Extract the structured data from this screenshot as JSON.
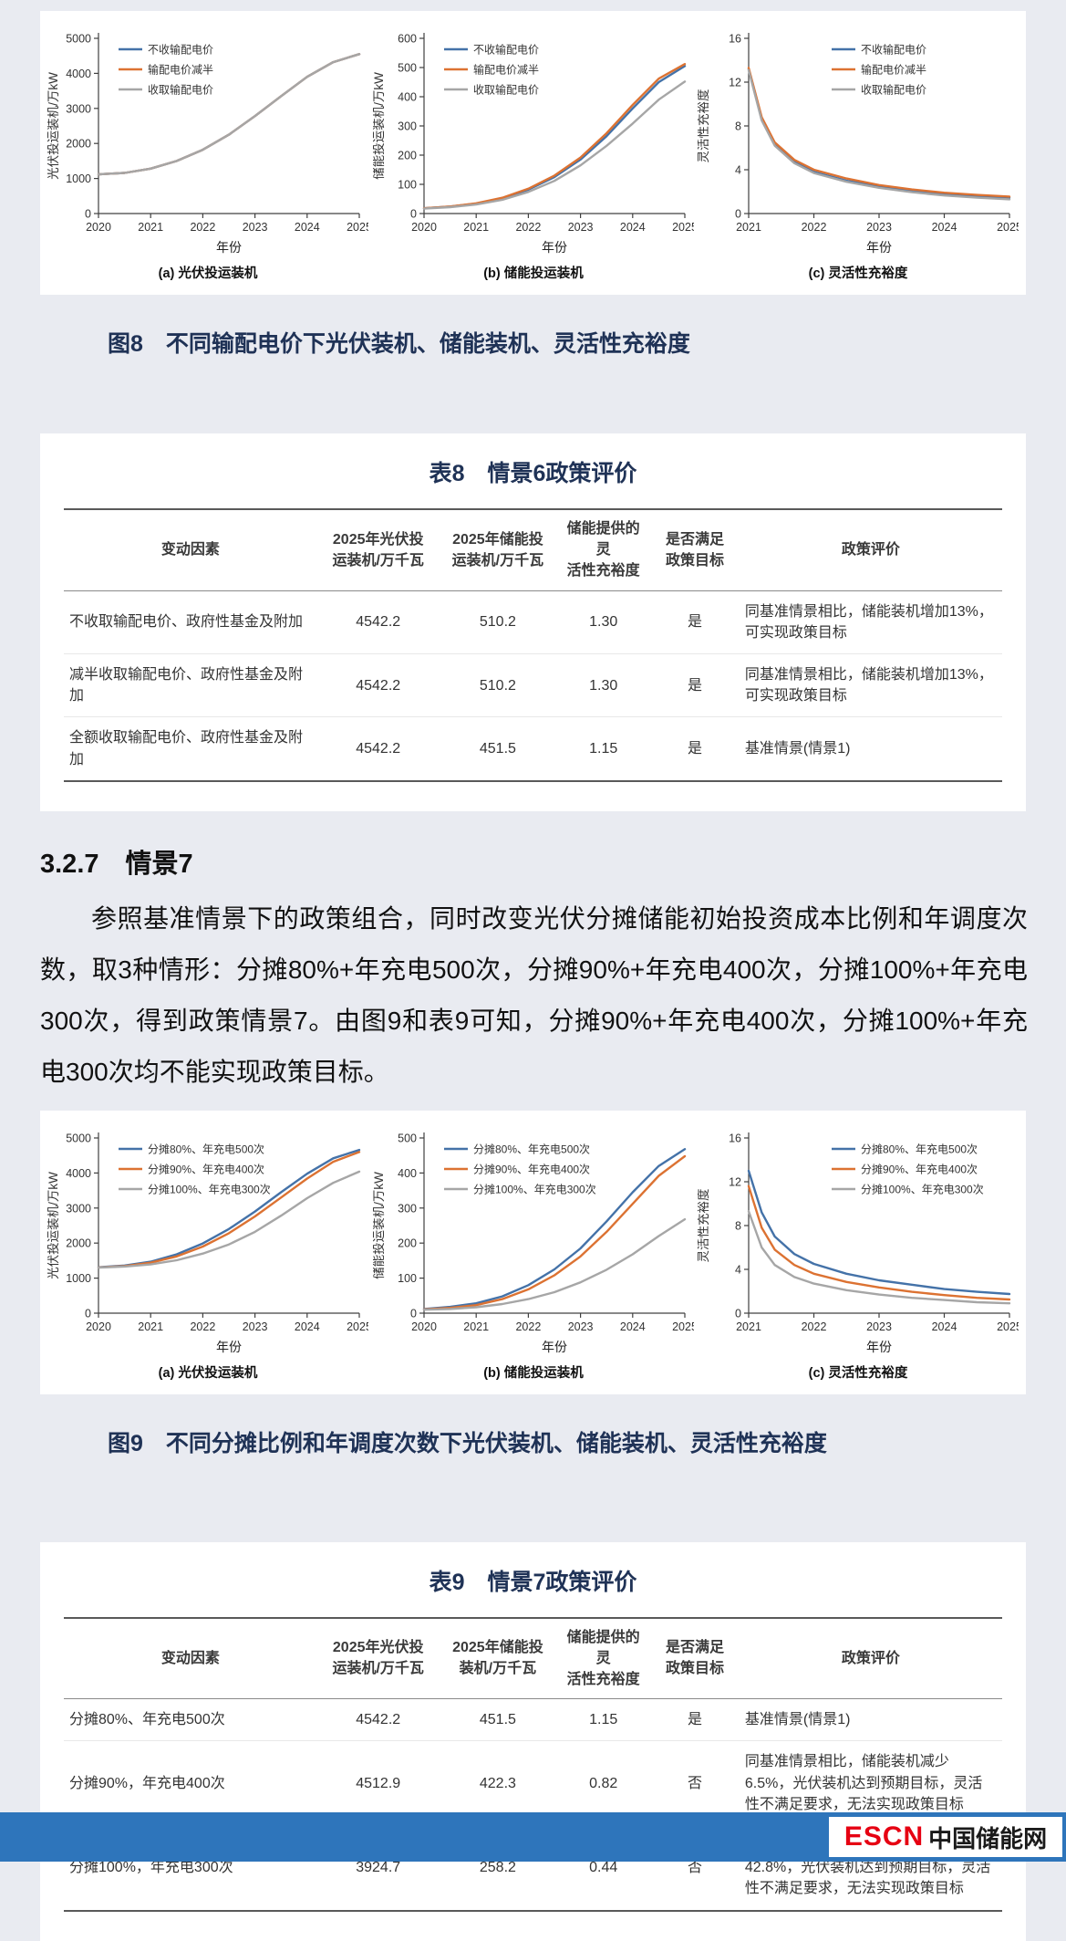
{
  "figure8": {
    "caption": "图8　不同输配电价下光伏装机、储能装机、灵活性充裕度"
  },
  "figure9": {
    "caption": "图9　不同分摊比例和年调度次数下光伏装机、储能装机、灵活性充裕度"
  },
  "section": {
    "heading": "3.2.7　情景7",
    "paragraph": "参照基准情景下的政策组合，同时改变光伏分摊储能初始投资成本比例和年调度次数，取3种情形：分摊80%+年充电500次，分摊90%+年充电400次，分摊100%+年充电300次，得到政策情景7。由图9和表9可知，分摊90%+年充电400次，分摊100%+年充电300次均不能实现政策目标。"
  },
  "table8": {
    "title": "表8　情景6政策评价",
    "col_widths": [
      "27%",
      "13%",
      "12.5%",
      "10%",
      "9.5%",
      "28%"
    ],
    "headers": [
      "变动因素",
      "2025年光伏投\n运装机/万千瓦",
      "2025年储能投\n运装机/万千瓦",
      "储能提供的灵\n活性充裕度",
      "是否满足\n政策目标",
      "政策评价"
    ],
    "rows": [
      [
        "不收取输配电价、政府性基金及附加",
        "4542.2",
        "510.2",
        "1.30",
        "是",
        "同基准情景相比，储能装机增加13%，\n可实现政策目标"
      ],
      [
        "减半收取输配电价、政府性基金及附加",
        "4542.2",
        "510.2",
        "1.30",
        "是",
        "同基准情景相比，储能装机增加13%，\n可实现政策目标"
      ],
      [
        "全额收取输配电价、政府性基金及附加",
        "4542.2",
        "451.5",
        "1.15",
        "是",
        "基准情景(情景1)"
      ]
    ]
  },
  "table9": {
    "title": "表9　情景7政策评价",
    "col_widths": [
      "27%",
      "13%",
      "12.5%",
      "10%",
      "9.5%",
      "28%"
    ],
    "headers": [
      "变动因素",
      "2025年光伏投\n运装机/万千瓦",
      "2025年储能投\n装机/万千瓦",
      "储能提供的灵\n活性充裕度",
      "是否满足\n政策目标",
      "政策评价"
    ],
    "rows": [
      [
        "分摊80%、年充电500次",
        "4542.2",
        "451.5",
        "1.15",
        "是",
        "基准情景(情景1)"
      ],
      [
        "分摊90%，年充电400次",
        "4512.9",
        "422.3",
        "0.82",
        "否",
        "同基准情景相比，储能装机减少6.5%，光伏装机达到预期目标，灵活性不满足要求，无法实现政策目标"
      ],
      [
        "分摊100%，年充电300次",
        "3924.7",
        "258.2",
        "0.44",
        "否",
        "同基准情景相比，储能装机减少42.8%，光伏装机达到预期目标，灵活性不满足要求，无法实现政策目标"
      ]
    ]
  },
  "footer": {
    "logo_escn": "ESCN",
    "logo_site": "中国储能网"
  },
  "colors": {
    "series_blue": "#4472a8",
    "series_orange": "#dc7232",
    "series_gray": "#a6a6a6",
    "footer_blue": "#2e75bb",
    "escn_red": "#e60012"
  },
  "chart_data": [
    {
      "type": "line",
      "title": "(a) 光伏投运装机",
      "ylabel": "光伏投运装机/万kW",
      "xlabel": "年份",
      "xlim": [
        2020,
        2025
      ],
      "ylim": [
        0,
        5000
      ],
      "xticks": [
        2020,
        2021,
        2022,
        2023,
        2024,
        2025
      ],
      "yticks": [
        0,
        1000,
        2000,
        3000,
        4000,
        5000
      ],
      "legend_pos": "left",
      "series": [
        {
          "name": "不收输配电价",
          "color": "#4472a8",
          "x": [
            2020,
            2020.5,
            2021,
            2021.5,
            2022,
            2022.5,
            2023,
            2023.5,
            2024,
            2024.5,
            2025
          ],
          "y": [
            1120,
            1160,
            1280,
            1500,
            1820,
            2250,
            2780,
            3350,
            3900,
            4320,
            4550
          ]
        },
        {
          "name": "输配电价减半",
          "color": "#dc7232",
          "x": [
            2020,
            2020.5,
            2021,
            2021.5,
            2022,
            2022.5,
            2023,
            2023.5,
            2024,
            2024.5,
            2025
          ],
          "y": [
            1120,
            1160,
            1280,
            1500,
            1820,
            2250,
            2780,
            3350,
            3900,
            4320,
            4550
          ]
        },
        {
          "name": "收取输配电价",
          "color": "#a6a6a6",
          "x": [
            2020,
            2020.5,
            2021,
            2021.5,
            2022,
            2022.5,
            2023,
            2023.5,
            2024,
            2024.5,
            2025
          ],
          "y": [
            1120,
            1160,
            1280,
            1500,
            1820,
            2250,
            2780,
            3350,
            3900,
            4320,
            4550
          ]
        }
      ]
    },
    {
      "type": "line",
      "title": "(b) 储能投运装机",
      "ylabel": "储能投运装机/万kW",
      "xlabel": "年份",
      "xlim": [
        2020,
        2025
      ],
      "ylim": [
        0,
        600
      ],
      "xticks": [
        2020,
        2021,
        2022,
        2023,
        2024,
        2025
      ],
      "yticks": [
        0,
        100,
        200,
        300,
        400,
        500,
        600
      ],
      "legend_pos": "left",
      "series": [
        {
          "name": "不收输配电价",
          "color": "#4472a8",
          "x": [
            2020,
            2020.5,
            2021,
            2021.5,
            2022,
            2022.5,
            2023,
            2023.5,
            2024,
            2024.5,
            2025
          ],
          "y": [
            18,
            24,
            34,
            52,
            82,
            125,
            185,
            265,
            360,
            450,
            505
          ]
        },
        {
          "name": "输配电价减半",
          "color": "#dc7232",
          "x": [
            2020,
            2020.5,
            2021,
            2021.5,
            2022,
            2022.5,
            2023,
            2023.5,
            2024,
            2024.5,
            2025
          ],
          "y": [
            18,
            24,
            35,
            54,
            85,
            130,
            192,
            275,
            372,
            462,
            512
          ]
        },
        {
          "name": "收取输配电价",
          "color": "#a6a6a6",
          "x": [
            2020,
            2020.5,
            2021,
            2021.5,
            2022,
            2022.5,
            2023,
            2023.5,
            2024,
            2024.5,
            2025
          ],
          "y": [
            17,
            22,
            31,
            47,
            74,
            112,
            165,
            232,
            308,
            390,
            452
          ]
        }
      ]
    },
    {
      "type": "line",
      "title": "(c) 灵活性充裕度",
      "ylabel": "灵活性充裕度",
      "xlabel": "年份",
      "xlim": [
        2021,
        2025
      ],
      "ylim": [
        0,
        16
      ],
      "xticks": [
        2021,
        2022,
        2023,
        2024,
        2025
      ],
      "yticks": [
        0,
        4,
        8,
        12,
        16
      ],
      "legend_pos": "right",
      "series": [
        {
          "name": "不收输配电价",
          "color": "#4472a8",
          "x": [
            2021,
            2021.2,
            2021.4,
            2021.7,
            2022,
            2022.5,
            2023,
            2023.5,
            2024,
            2024.5,
            2025
          ],
          "y": [
            13.2,
            8.6,
            6.3,
            4.7,
            3.8,
            3.0,
            2.5,
            2.1,
            1.8,
            1.6,
            1.45
          ]
        },
        {
          "name": "输配电价减半",
          "color": "#dc7232",
          "x": [
            2021,
            2021.2,
            2021.4,
            2021.7,
            2022,
            2022.5,
            2023,
            2023.5,
            2024,
            2024.5,
            2025
          ],
          "y": [
            13.3,
            8.8,
            6.5,
            4.9,
            4.0,
            3.2,
            2.6,
            2.2,
            1.9,
            1.7,
            1.55
          ]
        },
        {
          "name": "收取输配电价",
          "color": "#a6a6a6",
          "x": [
            2021,
            2021.2,
            2021.4,
            2021.7,
            2022,
            2022.5,
            2023,
            2023.5,
            2024,
            2024.5,
            2025
          ],
          "y": [
            13.1,
            8.5,
            6.2,
            4.6,
            3.7,
            2.9,
            2.35,
            1.95,
            1.65,
            1.45,
            1.3
          ]
        }
      ]
    },
    {
      "type": "line",
      "title": "(a) 光伏投运装机",
      "ylabel": "光伏投运装机/万kW",
      "xlabel": "年份",
      "xlim": [
        2020,
        2025
      ],
      "ylim": [
        0,
        5000
      ],
      "xticks": [
        2020,
        2021,
        2022,
        2023,
        2024,
        2025
      ],
      "yticks": [
        0,
        1000,
        2000,
        3000,
        4000,
        5000
      ],
      "legend_pos": "left",
      "series": [
        {
          "name": "分摊80%、年充电500次",
          "color": "#4472a8",
          "x": [
            2020,
            2020.5,
            2021,
            2021.5,
            2022,
            2022.5,
            2023,
            2023.5,
            2024,
            2024.5,
            2025
          ],
          "y": [
            1310,
            1360,
            1470,
            1680,
            1990,
            2400,
            2900,
            3450,
            3980,
            4420,
            4660
          ]
        },
        {
          "name": "分摊90%、年充电400次",
          "color": "#dc7232",
          "x": [
            2020,
            2020.5,
            2021,
            2021.5,
            2022,
            2022.5,
            2023,
            2023.5,
            2024,
            2024.5,
            2025
          ],
          "y": [
            1305,
            1345,
            1440,
            1620,
            1900,
            2280,
            2760,
            3300,
            3840,
            4320,
            4600
          ]
        },
        {
          "name": "分摊100%、年充电300次",
          "color": "#a6a6a6",
          "x": [
            2020,
            2020.5,
            2021,
            2021.5,
            2022,
            2022.5,
            2023,
            2023.5,
            2024,
            2024.5,
            2025
          ],
          "y": [
            1300,
            1330,
            1390,
            1510,
            1700,
            1960,
            2320,
            2780,
            3280,
            3720,
            4040
          ]
        }
      ]
    },
    {
      "type": "line",
      "title": "(b) 储能投运装机",
      "ylabel": "储能投运装机/万kW",
      "xlabel": "年份",
      "xlim": [
        2020,
        2025
      ],
      "ylim": [
        0,
        500
      ],
      "xticks": [
        2020,
        2021,
        2022,
        2023,
        2024,
        2025
      ],
      "yticks": [
        0,
        100,
        200,
        300,
        400,
        500
      ],
      "legend_pos": "left",
      "series": [
        {
          "name": "分摊80%、年充电500次",
          "color": "#4472a8",
          "x": [
            2020,
            2020.5,
            2021,
            2021.5,
            2022,
            2022.5,
            2023,
            2023.5,
            2024,
            2024.5,
            2025
          ],
          "y": [
            12,
            18,
            28,
            48,
            80,
            125,
            185,
            262,
            345,
            420,
            468
          ]
        },
        {
          "name": "分摊90%、年充电400次",
          "color": "#dc7232",
          "x": [
            2020,
            2020.5,
            2021,
            2021.5,
            2022,
            2022.5,
            2023,
            2023.5,
            2024,
            2024.5,
            2025
          ],
          "y": [
            11,
            15,
            23,
            40,
            68,
            108,
            162,
            232,
            312,
            392,
            448
          ]
        },
        {
          "name": "分摊100%、年充电300次",
          "color": "#a6a6a6",
          "x": [
            2020,
            2020.5,
            2021,
            2021.5,
            2022,
            2022.5,
            2023,
            2023.5,
            2024,
            2024.5,
            2025
          ],
          "y": [
            10,
            12,
            17,
            26,
            40,
            60,
            88,
            124,
            168,
            220,
            268
          ]
        }
      ]
    },
    {
      "type": "line",
      "title": "(c) 灵活性充裕度",
      "ylabel": "灵活性充裕度",
      "xlabel": "年份",
      "xlim": [
        2021,
        2025
      ],
      "ylim": [
        0,
        16
      ],
      "xticks": [
        2021,
        2022,
        2023,
        2024,
        2025
      ],
      "yticks": [
        0,
        4,
        8,
        12,
        16
      ],
      "legend_pos": "right",
      "series": [
        {
          "name": "分摊80%、年充电500次",
          "color": "#4472a8",
          "x": [
            2021,
            2021.2,
            2021.4,
            2021.7,
            2022,
            2022.5,
            2023,
            2023.5,
            2024,
            2024.5,
            2025
          ],
          "y": [
            13.0,
            9.2,
            7.0,
            5.4,
            4.5,
            3.6,
            3.0,
            2.6,
            2.2,
            1.95,
            1.75
          ]
        },
        {
          "name": "分摊90%、年充电400次",
          "color": "#dc7232",
          "x": [
            2021,
            2021.2,
            2021.4,
            2021.7,
            2022,
            2022.5,
            2023,
            2023.5,
            2024,
            2024.5,
            2025
          ],
          "y": [
            11.6,
            7.8,
            5.8,
            4.4,
            3.6,
            2.85,
            2.35,
            1.95,
            1.65,
            1.4,
            1.25
          ]
        },
        {
          "name": "分摊100%、年充电300次",
          "color": "#a6a6a6",
          "x": [
            2021,
            2021.2,
            2021.4,
            2021.7,
            2022,
            2022.5,
            2023,
            2023.5,
            2024,
            2024.5,
            2025
          ],
          "y": [
            9.3,
            6.0,
            4.4,
            3.3,
            2.7,
            2.1,
            1.7,
            1.4,
            1.2,
            1.0,
            0.9
          ]
        }
      ]
    }
  ]
}
